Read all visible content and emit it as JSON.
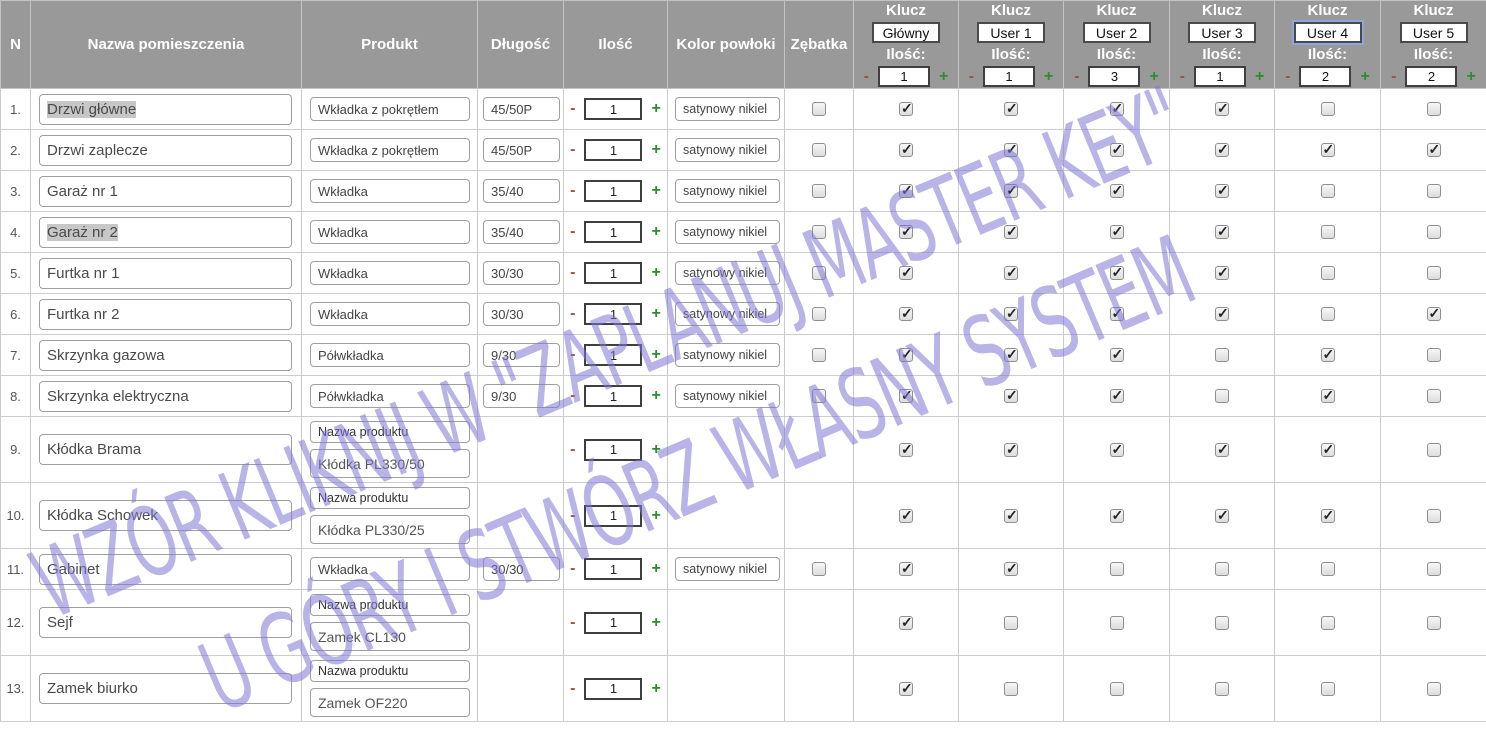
{
  "watermark": {
    "line1": "WZÓR KLIKNIJ W \"ZAPLANUJ MASTER KEY\"",
    "line2": "U GÓRY I STWÓRZ WŁASNY SYSTEM"
  },
  "colors": {
    "header_bg": "#999999",
    "watermark": "#7d77d6",
    "plus": "#2e8b2e",
    "minus": "#9c4f42",
    "grid_border": "#cccccc"
  },
  "header": {
    "n": "N",
    "room": "Nazwa pomieszczenia",
    "product": "Produkt",
    "length": "Długość",
    "qty": "Ilość",
    "coating": "Kolor powłoki",
    "gear": "Zębatka",
    "key_label": "Klucz",
    "qty_label": "Ilość:",
    "minus": "-",
    "plus": "+",
    "keys": [
      {
        "name": "Główny",
        "qty": "1",
        "focused": false
      },
      {
        "name": "User 1",
        "qty": "1",
        "focused": false
      },
      {
        "name": "User 2",
        "qty": "3",
        "focused": false
      },
      {
        "name": "User 3",
        "qty": "1",
        "focused": false
      },
      {
        "name": "User 4",
        "qty": "2",
        "focused": true
      },
      {
        "name": "User 5",
        "qty": "2",
        "focused": false
      }
    ]
  },
  "rows": [
    {
      "n": "1.",
      "room": "Drzwi główne",
      "room_selected": true,
      "product": "Wkładka z pokrętłem",
      "product_label": "",
      "length": "45/50P",
      "qty": "1",
      "coating": "satynowy nikiel",
      "gear": "unchecked",
      "keys": [
        true,
        true,
        true,
        true,
        false,
        false
      ],
      "tall": false
    },
    {
      "n": "2.",
      "room": "Drzwi zaplecze",
      "room_selected": false,
      "product": "Wkładka z pokrętłem",
      "product_label": "",
      "length": "45/50P",
      "qty": "1",
      "coating": "satynowy nikiel",
      "gear": "unchecked",
      "keys": [
        true,
        true,
        true,
        true,
        true,
        true
      ],
      "tall": false
    },
    {
      "n": "3.",
      "room": "Garaż nr 1",
      "room_selected": false,
      "product": "Wkładka",
      "product_label": "",
      "length": "35/40",
      "qty": "1",
      "coating": "satynowy nikiel",
      "gear": "unchecked",
      "keys": [
        true,
        true,
        true,
        true,
        false,
        false
      ],
      "tall": false
    },
    {
      "n": "4.",
      "room": "Garaż nr 2",
      "room_selected": true,
      "product": "Wkładka",
      "product_label": "",
      "length": "35/40",
      "qty": "1",
      "coating": "satynowy nikiel",
      "gear": "unchecked",
      "keys": [
        true,
        true,
        true,
        true,
        false,
        false
      ],
      "tall": false
    },
    {
      "n": "5.",
      "room": "Furtka nr 1",
      "room_selected": false,
      "product": "Wkładka",
      "product_label": "",
      "length": "30/30",
      "qty": "1",
      "coating": "satynowy nikiel",
      "gear": "unchecked",
      "keys": [
        true,
        true,
        true,
        true,
        false,
        false
      ],
      "tall": false
    },
    {
      "n": "6.",
      "room": "Furtka nr 2",
      "room_selected": false,
      "product": "Wkładka",
      "product_label": "",
      "length": "30/30",
      "qty": "1",
      "coating": "satynowy nikiel",
      "gear": "unchecked",
      "keys": [
        true,
        true,
        true,
        true,
        false,
        true
      ],
      "tall": false
    },
    {
      "n": "7.",
      "room": "Skrzynka gazowa",
      "room_selected": false,
      "product": "Półwkładka",
      "product_label": "",
      "length": "9/30",
      "qty": "1",
      "coating": "satynowy nikiel",
      "gear": "unchecked",
      "keys": [
        true,
        true,
        true,
        false,
        true,
        false
      ],
      "tall": false
    },
    {
      "n": "8.",
      "room": "Skrzynka elektryczna",
      "room_selected": false,
      "product": "Półwkładka",
      "product_label": "",
      "length": "9/30",
      "qty": "1",
      "coating": "satynowy nikiel",
      "gear": "unchecked",
      "keys": [
        true,
        true,
        true,
        false,
        true,
        false
      ],
      "tall": false
    },
    {
      "n": "9.",
      "room": "Kłódka Brama",
      "room_selected": false,
      "product": "Kłódka PL330/50",
      "product_label": "Nazwa produktu",
      "length": "",
      "qty": "1",
      "coating": "",
      "gear": "none",
      "keys": [
        true,
        true,
        true,
        true,
        true,
        false
      ],
      "tall": true
    },
    {
      "n": "10.",
      "room": "Kłódka Schowek",
      "room_selected": false,
      "product": "Kłódka PL330/25",
      "product_label": "Nazwa produktu",
      "length": "",
      "qty": "1",
      "coating": "",
      "gear": "none",
      "keys": [
        true,
        true,
        true,
        true,
        true,
        false
      ],
      "tall": true
    },
    {
      "n": "11.",
      "room": "Gabinet",
      "room_selected": false,
      "product": "Wkładka",
      "product_label": "",
      "length": "30/30",
      "qty": "1",
      "coating": "satynowy nikiel",
      "gear": "unchecked",
      "keys": [
        true,
        true,
        false,
        false,
        false,
        false
      ],
      "tall": false
    },
    {
      "n": "12.",
      "room": "Sejf",
      "room_selected": false,
      "product": "Zamek CL130",
      "product_label": "Nazwa produktu",
      "length": "",
      "qty": "1",
      "coating": "",
      "gear": "none",
      "keys": [
        true,
        false,
        false,
        false,
        false,
        false
      ],
      "tall": true
    },
    {
      "n": "13.",
      "room": "Zamek biurko",
      "room_selected": false,
      "product": "Zamek OF220",
      "product_label": "Nazwa produktu",
      "length": "",
      "qty": "1",
      "coating": "",
      "gear": "none",
      "keys": [
        true,
        false,
        false,
        false,
        false,
        false
      ],
      "tall": true
    }
  ]
}
